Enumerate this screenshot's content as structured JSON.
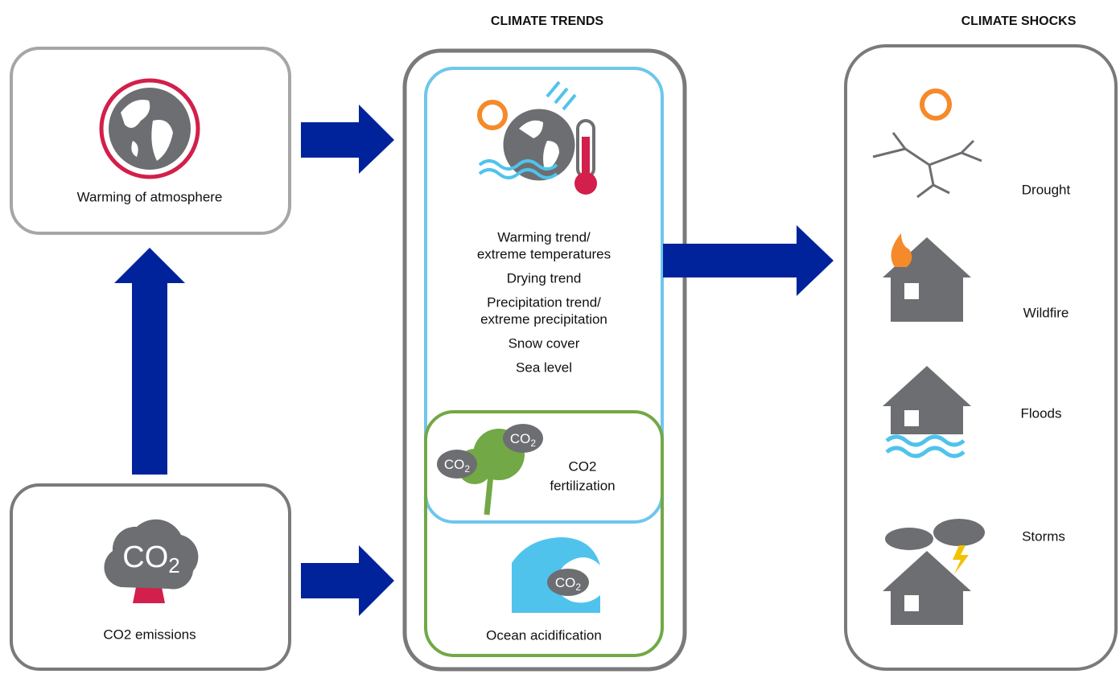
{
  "headers": {
    "trends": "CLIMATE TRENDS",
    "shocks": "CLIMATE SHOCKS"
  },
  "sources": {
    "warming": "Warming of atmosphere",
    "emissions": "CO2 emissions"
  },
  "co2_icon": {
    "main": "CO",
    "sub": "2"
  },
  "trends": {
    "items": [
      [
        "Warming trend/",
        "extreme temperatures"
      ],
      [
        "Drying trend"
      ],
      [
        "Precipitation trend/",
        "extreme precipitation"
      ],
      [
        "Snow cover"
      ],
      [
        "Sea level"
      ]
    ],
    "fertilization": [
      "CO2",
      "fertilization"
    ],
    "acidification": "Ocean acidification"
  },
  "shocks": [
    "Drought",
    "Wildfire",
    "Floods",
    "Storms"
  ]
}
